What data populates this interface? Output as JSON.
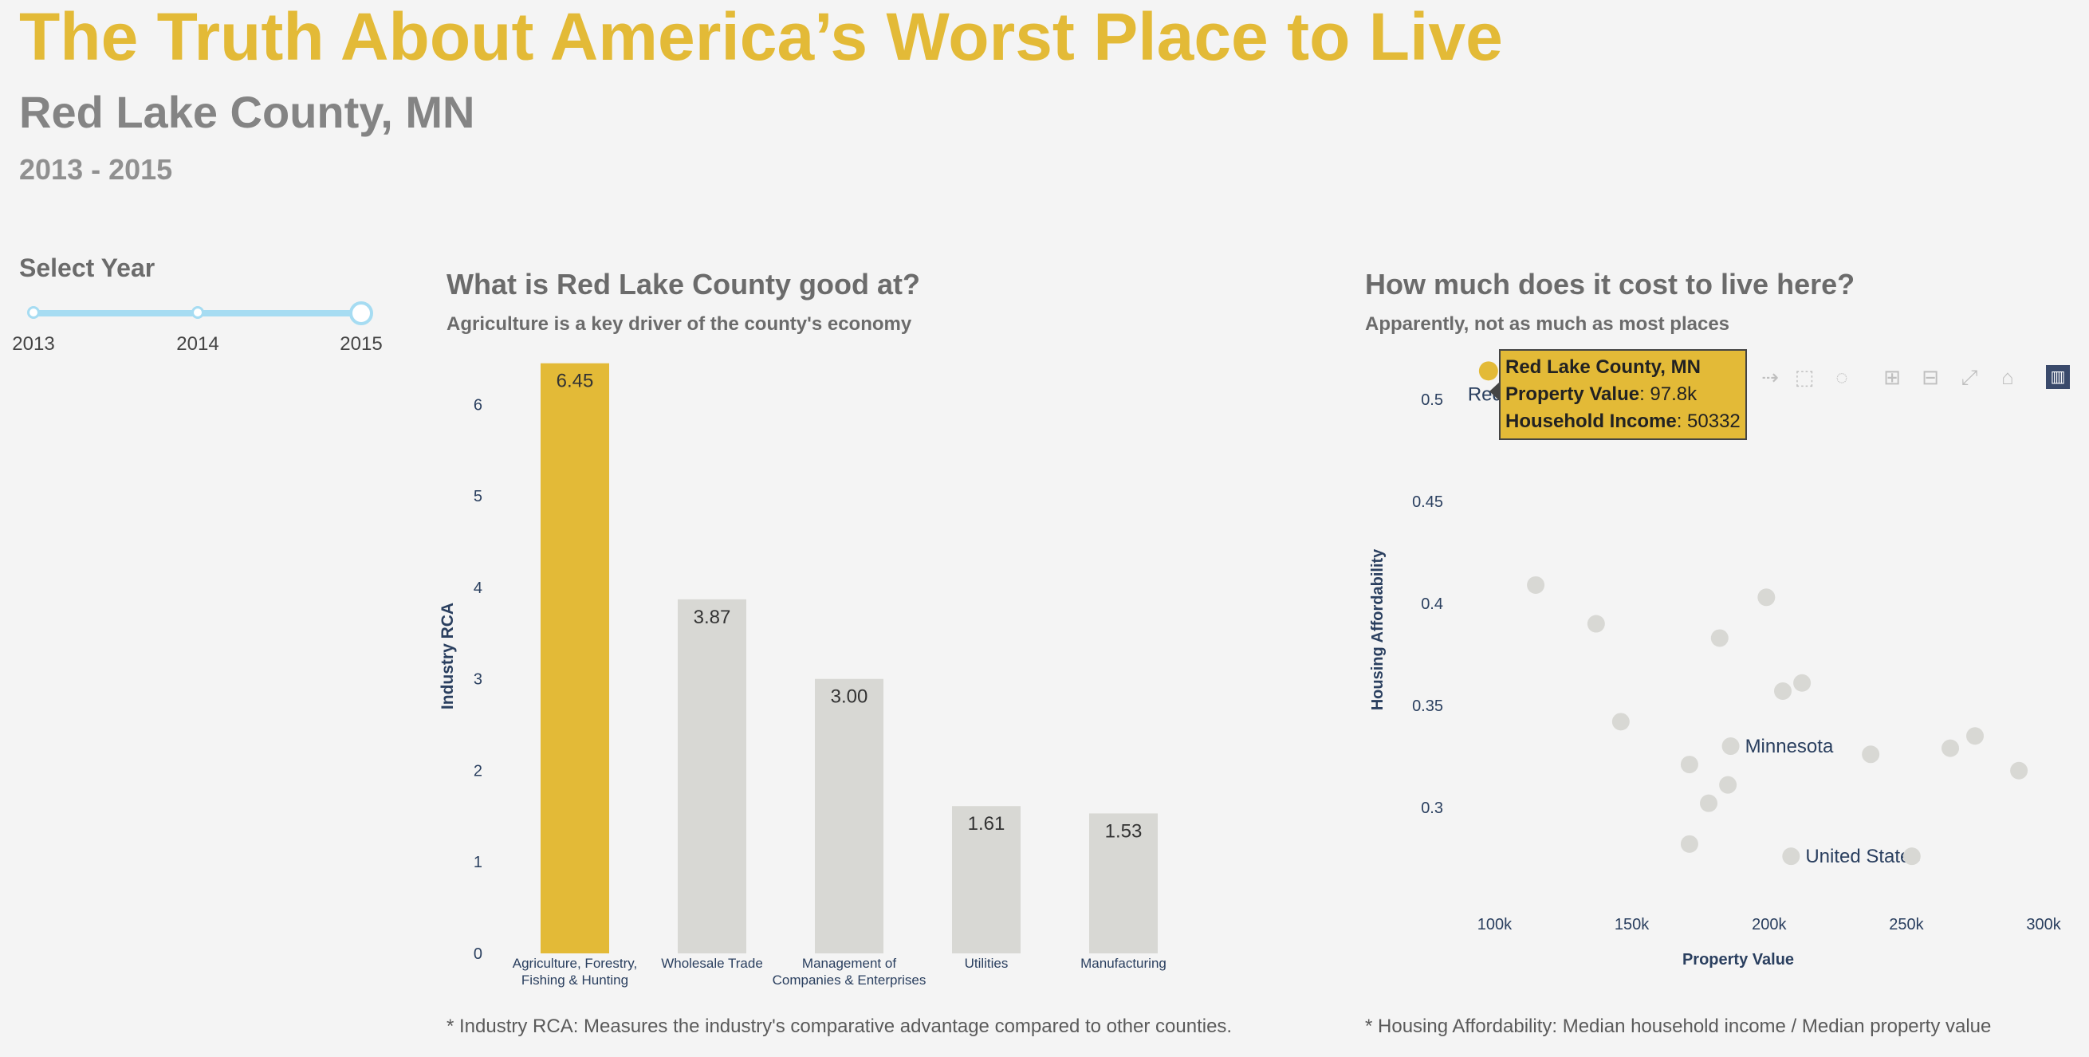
{
  "header": {
    "title": "The Truth About America’s Worst Place to Live",
    "subtitle": "Red Lake County, MN",
    "year_range": "2013 - 2015"
  },
  "slider": {
    "title": "Select Year",
    "labels": [
      "2013",
      "2014",
      "2015"
    ],
    "selected": "2015",
    "color": "#a6dcf2"
  },
  "left_panel": {
    "title": "What is Red Lake County good at?",
    "subtitle": "Agriculture is a key driver of the county's economy",
    "footnote": "* Industry RCA: Measures the industry's comparative advantage compared to other counties."
  },
  "right_panel": {
    "title": "How much does it cost to live here?",
    "subtitle": "Apparently, not as much as most places",
    "footnote": "* Housing Affordability: Median household income / Median property value"
  },
  "tooltip": {
    "county": "Red Lake County, MN",
    "pv_label": "Property Value",
    "pv_value": ": 97.8k",
    "hi_label": "Household Income",
    "hi_value": ": 50332"
  },
  "toolbar": {
    "icons": [
      "pan-icon",
      "box-select-icon",
      "lasso-icon",
      "zoom-in-icon",
      "zoom-out-icon",
      "autoscale-icon",
      "home-icon",
      "plotly-logo-icon"
    ]
  },
  "colors": {
    "highlight": "#e3ba37",
    "muted": "#d8d8d4",
    "axis_text": "#2a3f5f"
  },
  "chart_data": [
    {
      "type": "bar",
      "title": "What is Red Lake County good at?",
      "ylabel": "Industry RCA",
      "xlabel": "",
      "ylim": [
        0,
        6.5
      ],
      "yticks": [
        0,
        1,
        2,
        3,
        4,
        5,
        6
      ],
      "categories": [
        [
          "Agriculture, Forestry,",
          "Fishing & Hunting"
        ],
        [
          "Wholesale Trade"
        ],
        [
          "Management of",
          "Companies & Enterprises"
        ],
        [
          "Utilities"
        ],
        [
          "Manufacturing"
        ]
      ],
      "values": [
        6.45,
        3.87,
        3.0,
        1.61,
        1.53
      ],
      "value_labels": [
        "6.45",
        "3.87",
        "3.00",
        "1.61",
        "1.53"
      ],
      "highlight_index": 0
    },
    {
      "type": "scatter",
      "title": "How much does it cost to live here?",
      "xlabel": "Property Value",
      "ylabel": "Housing Affordability",
      "xlim": [
        90,
        302
      ],
      "ylim": [
        0.262,
        0.52
      ],
      "xticks": [
        100,
        150,
        200,
        250,
        300
      ],
      "xtick_labels": [
        "100k",
        "150k",
        "200k",
        "250k",
        "300k"
      ],
      "yticks": [
        0.3,
        0.35,
        0.4,
        0.45,
        0.5
      ],
      "ytick_labels": [
        "0.3",
        "0.35",
        "0.4",
        "0.45",
        "0.5"
      ],
      "highlight": {
        "x": 97.8,
        "y": 0.514,
        "label": "Red"
      },
      "points": [
        {
          "x": 115,
          "y": 0.409
        },
        {
          "x": 137,
          "y": 0.39
        },
        {
          "x": 146,
          "y": 0.342
        },
        {
          "x": 171,
          "y": 0.321
        },
        {
          "x": 171,
          "y": 0.282
        },
        {
          "x": 178,
          "y": 0.302
        },
        {
          "x": 182,
          "y": 0.383
        },
        {
          "x": 185,
          "y": 0.311
        },
        {
          "x": 186,
          "y": 0.33,
          "label": "Minnesota"
        },
        {
          "x": 199,
          "y": 0.403
        },
        {
          "x": 205,
          "y": 0.357
        },
        {
          "x": 212,
          "y": 0.361
        },
        {
          "x": 208,
          "y": 0.276,
          "label": "United States"
        },
        {
          "x": 237,
          "y": 0.326
        },
        {
          "x": 252,
          "y": 0.276
        },
        {
          "x": 266,
          "y": 0.329
        },
        {
          "x": 275,
          "y": 0.335
        },
        {
          "x": 291,
          "y": 0.318
        }
      ]
    }
  ]
}
